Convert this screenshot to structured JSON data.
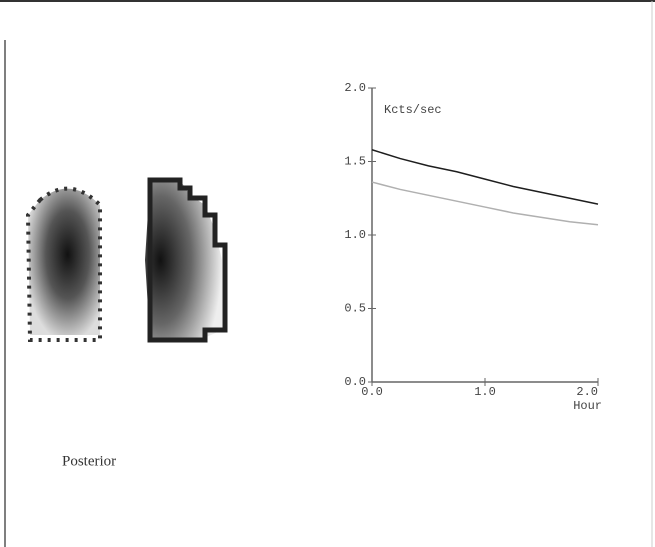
{
  "caption": "Posterior",
  "chart_data": {
    "type": "line",
    "y_label": "Kcts/sec",
    "x_label": "Hour",
    "x": [
      0,
      0.25,
      0.5,
      0.75,
      1.0,
      1.25,
      1.5,
      1.75,
      2.0
    ],
    "series": [
      {
        "color": "#1e1e1e",
        "values": [
          1.58,
          1.52,
          1.47,
          1.43,
          1.38,
          1.33,
          1.29,
          1.25,
          1.21
        ]
      },
      {
        "color": "#b0b0b0",
        "values": [
          1.36,
          1.31,
          1.27,
          1.23,
          1.19,
          1.15,
          1.12,
          1.09,
          1.07
        ]
      }
    ],
    "xlim": [
      0,
      2.0
    ],
    "ylim": [
      0,
      2.0
    ],
    "xticks": [
      {
        "value": 0,
        "label": "0.0"
      },
      {
        "value": 1,
        "label": "1.0"
      },
      {
        "value": 2,
        "label": "2.0"
      }
    ],
    "yticks": [
      {
        "value": 0,
        "label": "0.0"
      },
      0.5,
      {
        "value": 1,
        "label": "1.0"
      },
      1.5,
      {
        "value": 2,
        "label": "2.0"
      }
    ]
  }
}
